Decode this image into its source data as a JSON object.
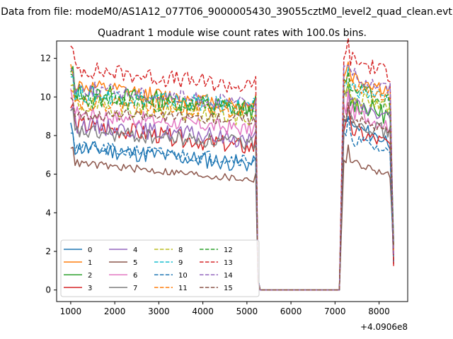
{
  "suptitle": "Data from file: modeM0/AS1A12_077T06_9000005430_39055cztM0_level2_quad_clean.evt",
  "chart_data": {
    "type": "line",
    "title": "Quadrant 1 module wise count rates with 100.0s bins.",
    "xlabel": "",
    "ylabel": "",
    "x_offset_label": "+4.0906e8",
    "xlim": [
      680,
      8650
    ],
    "ylim": [
      -0.6,
      12.9
    ],
    "xticks": [
      1000,
      2000,
      3000,
      4000,
      5000,
      6000,
      7000,
      8000
    ],
    "yticks": [
      0,
      2,
      4,
      6,
      8,
      10,
      12
    ],
    "grid": false,
    "legend_position": "lower-left",
    "series": [
      {
        "name": "0",
        "color": "#1f77b4",
        "dash": "solid",
        "base": 7.4,
        "amp": 0.45,
        "trend": -1.5,
        "post": 8.2,
        "seed": 11
      },
      {
        "name": "1",
        "color": "#ff7f0e",
        "dash": "solid",
        "base": 10.6,
        "amp": 0.4,
        "trend": -1.8,
        "post": 10.8,
        "seed": 12
      },
      {
        "name": "2",
        "color": "#2ca02c",
        "dash": "solid",
        "base": 10.3,
        "amp": 0.5,
        "trend": -1.6,
        "post": 9.5,
        "seed": 13
      },
      {
        "name": "3",
        "color": "#d62728",
        "dash": "solid",
        "base": 8.6,
        "amp": 0.45,
        "trend": -2.1,
        "post": 8.0,
        "seed": 14
      },
      {
        "name": "4",
        "color": "#9467bd",
        "dash": "solid",
        "base": 8.6,
        "amp": 0.45,
        "trend": -1.4,
        "post": 9.4,
        "seed": 15
      },
      {
        "name": "5",
        "color": "#8c564b",
        "dash": "solid",
        "base": 6.6,
        "amp": 0.2,
        "trend": -1.5,
        "post": 6.4,
        "seed": 16
      },
      {
        "name": "6",
        "color": "#e377c2",
        "dash": "solid",
        "base": 9.2,
        "amp": 0.4,
        "trend": -1.5,
        "post": 9.0,
        "seed": 17
      },
      {
        "name": "7",
        "color": "#7f7f7f",
        "dash": "solid",
        "base": 8.2,
        "amp": 0.4,
        "trend": -1.0,
        "post": 8.6,
        "seed": 18
      },
      {
        "name": "8",
        "color": "#bcbd22",
        "dash": "dashed",
        "base": 9.6,
        "amp": 0.45,
        "trend": -1.2,
        "post": 9.8,
        "seed": 19
      },
      {
        "name": "9",
        "color": "#17becf",
        "dash": "dashed",
        "base": 10.2,
        "amp": 0.45,
        "trend": -1.2,
        "post": 10.3,
        "seed": 20
      },
      {
        "name": "10",
        "color": "#1f77b4",
        "dash": "dashed",
        "base": 7.4,
        "amp": 0.35,
        "trend": -1.1,
        "post": 7.6,
        "seed": 21
      },
      {
        "name": "11",
        "color": "#ff7f0e",
        "dash": "dashed",
        "base": 9.8,
        "amp": 0.45,
        "trend": -0.9,
        "post": 10.4,
        "seed": 22
      },
      {
        "name": "12",
        "color": "#2ca02c",
        "dash": "dashed",
        "base": 9.9,
        "amp": 0.45,
        "trend": -0.9,
        "post": 10.2,
        "seed": 23
      },
      {
        "name": "13",
        "color": "#d62728",
        "dash": "dashed",
        "base": 11.5,
        "amp": 0.45,
        "trend": -1.7,
        "post": 11.7,
        "seed": 24
      },
      {
        "name": "14",
        "color": "#9467bd",
        "dash": "dashed",
        "base": 10.5,
        "amp": 0.4,
        "trend": -1.5,
        "post": 10.9,
        "seed": 25
      },
      {
        "name": "15",
        "color": "#8c564b",
        "dash": "dashed",
        "base": 9.1,
        "amp": 0.3,
        "trend": -0.4,
        "post": 8.7,
        "seed": 26
      }
    ],
    "gap": {
      "start": 5250,
      "end": 7100,
      "value": 0
    }
  }
}
